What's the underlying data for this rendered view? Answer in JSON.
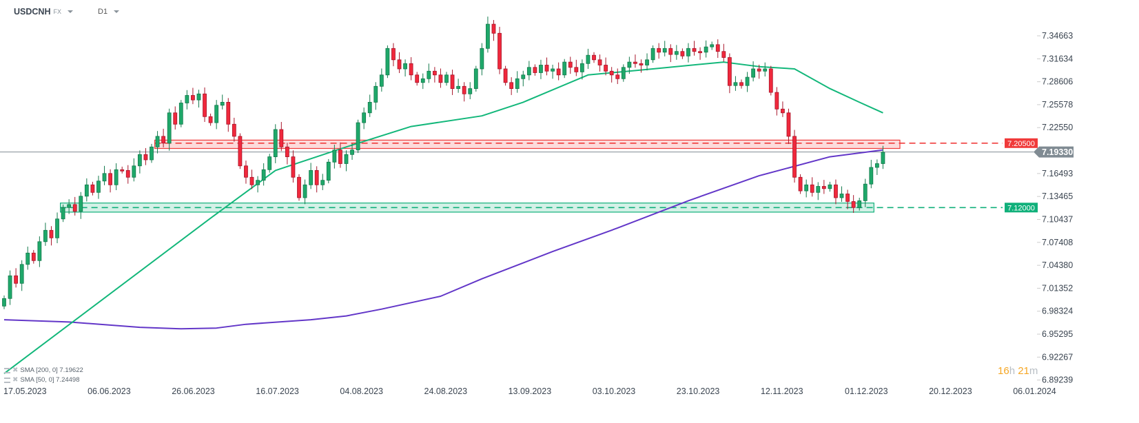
{
  "header": {
    "symbol": "USDCNH",
    "class": "FX",
    "timeframe": "D1"
  },
  "colors": {
    "up": "#1fa86a",
    "down": "#f0283c",
    "sma50": "#12b77a",
    "sma200": "#6236c8",
    "resistance": "#f03a3a",
    "support": "#10b07a",
    "price_line": "#808b93"
  },
  "chart_data": {
    "type": "candlestick",
    "y_ticks": [
      "7.34663",
      "7.31634",
      "7.28606",
      "7.25578",
      "7.22550",
      "7.16493",
      "7.13465",
      "7.10437",
      "7.07408",
      "7.04380",
      "7.01352",
      "6.98324",
      "6.95295",
      "6.92267",
      "6.89239"
    ],
    "ylim": [
      6.89239,
      7.34663
    ],
    "x_ticks": [
      "17.05.2023",
      "06.06.2023",
      "26.06.2023",
      "16.07.2023",
      "04.08.2023",
      "24.08.2023",
      "13.09.2023",
      "03.10.2023",
      "23.10.2023",
      "12.11.2023",
      "01.12.2023",
      "20.12.2023",
      "06.01.2024"
    ],
    "first_open": 6.99,
    "closes": [
      7.0,
      7.03,
      7.02,
      7.045,
      7.06,
      7.05,
      7.075,
      7.09,
      7.08,
      7.105,
      7.12,
      7.124,
      7.115,
      7.135,
      7.15,
      7.14,
      7.155,
      7.165,
      7.15,
      7.17,
      7.169,
      7.16,
      7.175,
      7.19,
      7.183,
      7.2,
      7.214,
      7.205,
      7.245,
      7.23,
      7.258,
      7.268,
      7.262,
      7.27,
      7.24,
      7.232,
      7.255,
      7.259,
      7.23,
      7.214,
      7.175,
      7.16,
      7.15,
      7.156,
      7.17,
      7.187,
      7.223,
      7.2,
      7.187,
      7.16,
      7.133,
      7.15,
      7.169,
      7.15,
      7.156,
      7.18,
      7.196,
      7.178,
      7.19,
      7.196,
      7.232,
      7.245,
      7.259,
      7.28,
      7.295,
      7.33,
      7.315,
      7.303,
      7.31,
      7.295,
      7.285,
      7.29,
      7.3,
      7.295,
      7.285,
      7.295,
      7.277,
      7.28,
      7.27,
      7.277,
      7.303,
      7.33,
      7.362,
      7.35,
      7.303,
      7.285,
      7.277,
      7.29,
      7.295,
      7.305,
      7.298,
      7.308,
      7.3,
      7.303,
      7.295,
      7.312,
      7.305,
      7.299,
      7.31,
      7.321,
      7.315,
      7.308,
      7.3,
      7.295,
      7.29,
      7.305,
      7.312,
      7.31,
      7.308,
      7.315,
      7.33,
      7.325,
      7.33,
      7.322,
      7.326,
      7.32,
      7.33,
      7.326,
      7.325,
      7.332,
      7.335,
      7.326,
      7.318,
      7.281,
      7.285,
      7.281,
      7.292,
      7.303,
      7.3,
      7.303,
      7.272,
      7.25,
      7.245,
      7.214,
      7.16,
      7.142,
      7.15,
      7.14,
      7.148,
      7.145,
      7.15,
      7.133,
      7.138,
      7.128,
      7.12,
      7.129,
      7.151,
      7.173,
      7.178,
      7.193
    ],
    "sma50": [
      [
        0,
        6.901
      ],
      [
        35,
        7.106
      ],
      [
        46,
        7.169
      ],
      [
        58,
        7.2
      ],
      [
        69,
        7.227
      ],
      [
        81,
        7.241
      ],
      [
        88,
        7.259
      ],
      [
        99,
        7.295
      ],
      [
        110,
        7.303
      ],
      [
        122,
        7.312
      ],
      [
        128,
        7.306
      ],
      [
        134,
        7.303
      ],
      [
        140,
        7.277
      ],
      [
        145,
        7.259
      ],
      [
        149,
        7.245
      ]
    ],
    "sma200": [
      [
        0,
        6.972
      ],
      [
        11,
        6.969
      ],
      [
        23,
        6.962
      ],
      [
        30,
        6.96
      ],
      [
        36,
        6.961
      ],
      [
        41,
        6.966
      ],
      [
        52,
        6.972
      ],
      [
        58,
        6.977
      ],
      [
        64,
        6.986
      ],
      [
        74,
        7.003
      ],
      [
        81,
        7.026
      ],
      [
        93,
        7.062
      ],
      [
        104,
        7.093
      ],
      [
        116,
        7.129
      ],
      [
        128,
        7.162
      ],
      [
        140,
        7.187
      ],
      [
        149,
        7.196
      ]
    ],
    "levels": [
      {
        "value": 7.205,
        "label": "7.20500",
        "band": [
          7.198,
          7.209
        ],
        "from_index": 26,
        "type": "resistance"
      },
      {
        "value": 7.12,
        "label": "7.12000",
        "band": [
          7.114,
          7.126
        ],
        "from_index": 10,
        "to_index": 147,
        "type": "support"
      }
    ],
    "current_price": "7.19330",
    "legend": [
      {
        "name": "SMA [200,  0] 7.19622"
      },
      {
        "name": "SMA [50,  0] 7.24498"
      }
    ]
  },
  "timer": {
    "hours": "16",
    "h": "h",
    "minutes": "21",
    "m": "m"
  }
}
